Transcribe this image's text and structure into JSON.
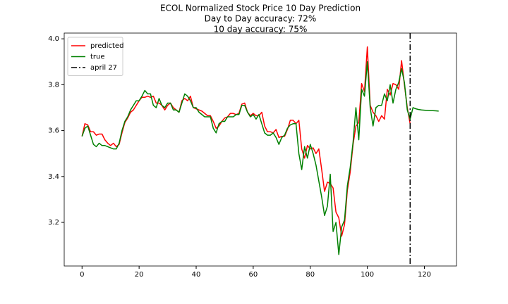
{
  "chart_data": {
    "type": "line",
    "title": "ECOL Normalized Stock Price 10 Day Prediction",
    "subtitles": [
      "Day to Day accuracy: 72%",
      "10 day accuracy: 75%"
    ],
    "x": [
      0,
      1,
      2,
      3,
      4,
      5,
      6,
      7,
      8,
      9,
      10,
      11,
      12,
      13,
      14,
      15,
      16,
      17,
      18,
      19,
      20,
      21,
      22,
      23,
      24,
      25,
      26,
      27,
      28,
      29,
      30,
      31,
      32,
      33,
      34,
      35,
      36,
      37,
      38,
      39,
      40,
      41,
      42,
      43,
      44,
      45,
      46,
      47,
      48,
      49,
      50,
      51,
      52,
      53,
      54,
      55,
      56,
      57,
      58,
      59,
      60,
      61,
      62,
      63,
      64,
      65,
      66,
      67,
      68,
      69,
      70,
      71,
      72,
      73,
      74,
      75,
      76,
      77,
      78,
      79,
      80,
      81,
      82,
      83,
      84,
      85,
      86,
      87,
      88,
      89,
      90,
      91,
      92,
      93,
      94,
      95,
      96,
      97,
      98,
      99,
      100,
      101,
      102,
      103,
      104,
      105,
      106,
      107,
      108,
      109,
      110,
      111,
      112,
      113,
      114,
      115,
      116,
      117,
      118,
      119,
      120,
      121,
      122,
      123,
      124,
      125
    ],
    "series": [
      {
        "name": "predicted",
        "color": "#ff0000",
        "values": [
          3.575,
          3.63,
          3.625,
          3.595,
          3.595,
          3.58,
          3.585,
          3.585,
          3.56,
          3.545,
          3.535,
          3.545,
          3.53,
          3.54,
          3.59,
          3.635,
          3.655,
          3.68,
          3.69,
          3.71,
          3.73,
          3.745,
          3.745,
          3.75,
          3.745,
          3.75,
          3.72,
          3.72,
          3.71,
          3.69,
          3.71,
          3.72,
          3.7,
          3.69,
          3.68,
          3.73,
          3.74,
          3.73,
          3.75,
          3.7,
          3.695,
          3.69,
          3.685,
          3.675,
          3.665,
          3.665,
          3.64,
          3.61,
          3.62,
          3.64,
          3.655,
          3.66,
          3.675,
          3.675,
          3.67,
          3.675,
          3.715,
          3.72,
          3.68,
          3.665,
          3.675,
          3.665,
          3.665,
          3.68,
          3.62,
          3.595,
          3.595,
          3.59,
          3.605,
          3.57,
          3.575,
          3.575,
          3.605,
          3.645,
          3.645,
          3.63,
          3.645,
          3.52,
          3.48,
          3.535,
          3.52,
          3.525,
          3.5,
          3.52,
          3.43,
          3.335,
          3.375,
          3.37,
          3.35,
          3.245,
          3.22,
          3.14,
          3.19,
          3.34,
          3.42,
          3.54,
          3.62,
          3.635,
          3.805,
          3.77,
          3.965,
          3.71,
          3.68,
          3.665,
          3.64,
          3.665,
          3.65,
          3.78,
          3.755,
          3.805,
          3.8,
          3.78,
          3.905,
          3.8,
          3.7,
          3.63,
          null,
          null,
          null,
          null,
          null,
          null,
          null,
          null,
          null,
          null
        ]
      },
      {
        "name": "true",
        "color": "#008000",
        "values": [
          3.575,
          3.61,
          3.62,
          3.58,
          3.54,
          3.53,
          3.545,
          3.535,
          3.535,
          3.53,
          3.525,
          3.52,
          3.52,
          3.545,
          3.6,
          3.64,
          3.66,
          3.69,
          3.71,
          3.73,
          3.73,
          3.75,
          3.775,
          3.76,
          3.76,
          3.71,
          3.7,
          3.74,
          3.71,
          3.7,
          3.72,
          3.72,
          3.69,
          3.69,
          3.68,
          3.72,
          3.76,
          3.75,
          3.73,
          3.7,
          3.7,
          3.68,
          3.67,
          3.66,
          3.66,
          3.66,
          3.61,
          3.59,
          3.63,
          3.64,
          3.64,
          3.66,
          3.66,
          3.66,
          3.67,
          3.67,
          3.71,
          3.71,
          3.68,
          3.66,
          3.67,
          3.65,
          3.67,
          3.63,
          3.59,
          3.58,
          3.58,
          3.59,
          3.57,
          3.54,
          3.57,
          3.58,
          3.61,
          3.625,
          3.63,
          3.63,
          3.5,
          3.43,
          3.53,
          3.48,
          3.54,
          3.5,
          3.45,
          3.38,
          3.31,
          3.23,
          3.27,
          3.41,
          3.16,
          3.2,
          3.06,
          3.18,
          3.21,
          3.36,
          3.44,
          3.55,
          3.7,
          3.56,
          3.78,
          3.75,
          3.9,
          3.7,
          3.62,
          3.7,
          3.71,
          3.71,
          3.76,
          3.73,
          3.8,
          3.72,
          3.78,
          3.81,
          3.87,
          3.81,
          3.69,
          3.65,
          3.7,
          3.695,
          3.692,
          3.69,
          3.689,
          3.688,
          3.687,
          3.687,
          3.686,
          3.685
        ]
      }
    ],
    "vlines": [
      {
        "name": "april 27",
        "x": 115,
        "color": "#000000"
      }
    ],
    "xlim": [
      -6.25,
      131.25
    ],
    "xticks": [
      0,
      20,
      40,
      60,
      80,
      100,
      120
    ],
    "ylim": [
      3.01,
      4.025
    ],
    "yticks": [
      3.2,
      3.4,
      3.6,
      3.8,
      {
        "value": 4.0,
        "label": "4.0"
      }
    ],
    "legend": "upper left",
    "grid": false
  }
}
